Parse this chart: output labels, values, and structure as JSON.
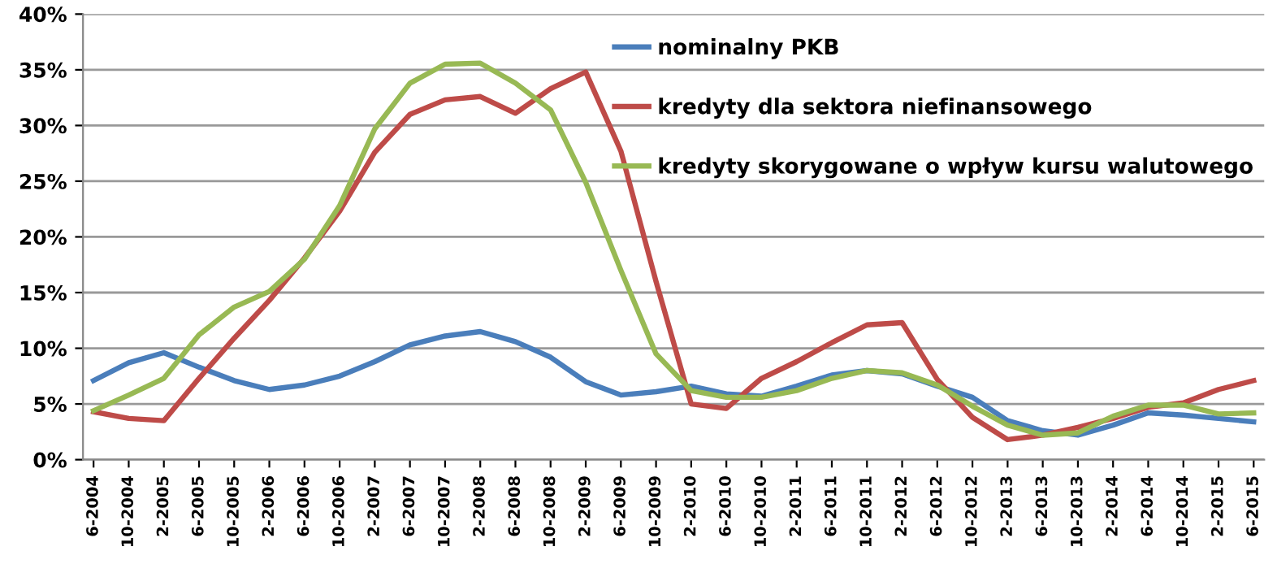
{
  "chart_data": {
    "type": "line",
    "categories": [
      "6-2004",
      "10-2004",
      "2-2005",
      "6-2005",
      "10-2005",
      "2-2006",
      "6-2006",
      "10-2006",
      "2-2007",
      "6-2007",
      "10-2007",
      "2-2008",
      "6-2008",
      "10-2008",
      "2-2009",
      "6-2009",
      "10-2009",
      "2-2010",
      "6-2010",
      "10-2010",
      "2-2011",
      "6-2011",
      "10-2011",
      "2-2012",
      "6-2012",
      "10-2012",
      "2-2013",
      "6-2013",
      "10-2013",
      "2-2014",
      "6-2014",
      "10-2014",
      "2-2015",
      "6-2015"
    ],
    "series": [
      {
        "name": "nominalny PKB",
        "color": "#4a7ebb",
        "values": [
          7.1,
          8.7,
          9.6,
          8.3,
          7.1,
          6.3,
          6.7,
          7.5,
          8.8,
          10.3,
          11.1,
          11.5,
          10.6,
          9.2,
          7.0,
          5.8,
          6.1,
          6.6,
          5.9,
          5.7,
          6.6,
          7.6,
          8.0,
          7.7,
          6.6,
          5.6,
          3.5,
          2.6,
          2.2,
          3.1,
          4.2,
          4.0,
          3.7,
          3.4
        ]
      },
      {
        "name": "kredyty dla sektora niefinansowego",
        "color": "#be4b48",
        "values": [
          4.3,
          3.7,
          3.5,
          7.3,
          10.9,
          14.3,
          18.1,
          22.3,
          27.6,
          31.0,
          32.3,
          32.6,
          31.1,
          33.3,
          34.8,
          27.7,
          16.0,
          5.0,
          4.6,
          7.3,
          8.8,
          10.5,
          12.1,
          12.3,
          7.2,
          3.8,
          1.8,
          2.2,
          2.9,
          3.7,
          4.7,
          5.1,
          6.3,
          7.1
        ]
      },
      {
        "name": "kredyty skorygowane o wpływ kursu walutowego",
        "color": "#98b954",
        "values": [
          4.4,
          5.8,
          7.3,
          11.2,
          13.7,
          15.1,
          18.0,
          22.8,
          29.7,
          33.8,
          35.5,
          35.6,
          33.8,
          31.4,
          24.9,
          17.0,
          9.5,
          6.2,
          5.6,
          5.6,
          6.2,
          7.3,
          8.0,
          7.8,
          6.7,
          4.8,
          3.1,
          2.2,
          2.4,
          3.9,
          4.9,
          4.9,
          4.1,
          4.2
        ]
      }
    ],
    "ylim": [
      0,
      40
    ],
    "yticks": [
      {
        "value": 0,
        "label": "0%"
      },
      {
        "value": 5,
        "label": "5%"
      },
      {
        "value": 10,
        "label": "10%"
      },
      {
        "value": 15,
        "label": "15%"
      },
      {
        "value": 20,
        "label": "20%"
      },
      {
        "value": 25,
        "label": "25%"
      },
      {
        "value": 30,
        "label": "30%"
      },
      {
        "value": 35,
        "label": "35%"
      },
      {
        "value": 40,
        "label": "40%"
      }
    ],
    "grid": "y",
    "legend": "top right",
    "marker": "none",
    "line_style": "solid"
  }
}
